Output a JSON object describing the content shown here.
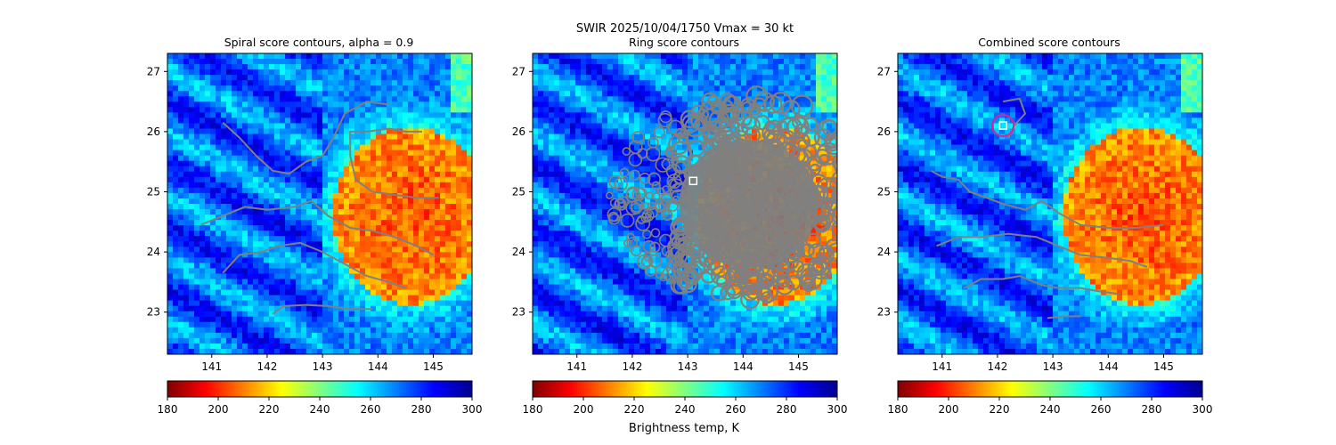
{
  "suptitle_line1": "SWIR  2025/10/04/1750    Vmax = 30 kt",
  "colorbar_label": "Brightness temp, K",
  "colormap": {
    "stops": [
      "#800000",
      "#ff0000",
      "#ff8000",
      "#ffff00",
      "#80ff80",
      "#00ffff",
      "#0080ff",
      "#0000ff",
      "#00008f"
    ],
    "range": [
      180,
      300
    ]
  },
  "chart_data": [
    {
      "type": "heatmap",
      "title": "Spiral score contours, alpha =  0.9",
      "xlim": [
        140.2,
        145.7
      ],
      "ylim": [
        22.3,
        27.3
      ],
      "xticks": [
        141,
        142,
        143,
        144,
        145
      ],
      "yticks": [
        23,
        24,
        25,
        26,
        27
      ],
      "colorbar": {
        "orientation": "horizontal",
        "ticks": [
          180,
          200,
          220,
          240,
          260,
          280,
          300
        ],
        "range": [
          180,
          300
        ],
        "reversed_jet": true
      },
      "contours": [
        {
          "color": "#808080",
          "points": [
            [
              141.2,
              26.15
            ],
            [
              141.5,
              25.9
            ],
            [
              141.8,
              25.6
            ],
            [
              142.1,
              25.35
            ],
            [
              142.4,
              25.3
            ],
            [
              142.7,
              25.5
            ],
            [
              143.0,
              25.6
            ],
            [
              143.2,
              25.9
            ],
            [
              143.4,
              26.3
            ],
            [
              143.8,
              26.5
            ],
            [
              144.2,
              26.45
            ]
          ]
        },
        {
          "color": "#808080",
          "points": [
            [
              143.5,
              25.6
            ],
            [
              143.5,
              26.0
            ],
            [
              143.8,
              26.0
            ],
            [
              144.2,
              26.05
            ],
            [
              144.5,
              26.0
            ],
            [
              144.8,
              26.0
            ]
          ]
        },
        {
          "color": "#808080",
          "points": [
            [
              143.5,
              25.6
            ],
            [
              143.6,
              25.2
            ],
            [
              143.9,
              25.0
            ],
            [
              144.3,
              24.95
            ],
            [
              144.7,
              24.9
            ],
            [
              145.1,
              24.9
            ]
          ]
        },
        {
          "color": "#808080",
          "points": [
            [
              140.8,
              24.45
            ],
            [
              141.2,
              24.6
            ],
            [
              141.6,
              24.75
            ],
            [
              142.0,
              24.7
            ],
            [
              142.5,
              24.75
            ],
            [
              142.8,
              24.85
            ],
            [
              143.1,
              24.6
            ],
            [
              143.5,
              24.4
            ],
            [
              143.9,
              24.35
            ],
            [
              144.3,
              24.25
            ],
            [
              144.7,
              24.1
            ],
            [
              145.0,
              23.95
            ]
          ]
        },
        {
          "color": "#808080",
          "points": [
            [
              141.2,
              23.65
            ],
            [
              141.5,
              23.95
            ],
            [
              141.9,
              24.0
            ],
            [
              142.2,
              24.1
            ],
            [
              142.6,
              24.15
            ],
            [
              143.0,
              24.0
            ],
            [
              143.4,
              23.8
            ],
            [
              143.8,
              23.6
            ],
            [
              144.2,
              23.5
            ],
            [
              144.5,
              23.4
            ]
          ]
        },
        {
          "color": "#808080",
          "points": [
            [
              142.1,
              22.97
            ],
            [
              142.3,
              23.1
            ],
            [
              142.7,
              23.12
            ],
            [
              143.1,
              23.1
            ],
            [
              143.5,
              23.05
            ],
            [
              143.9,
              23.05
            ]
          ]
        }
      ],
      "markers": []
    },
    {
      "type": "heatmap",
      "title": "Ring score contours",
      "xlim": [
        140.2,
        145.7
      ],
      "ylim": [
        22.3,
        27.3
      ],
      "xticks": [
        141,
        142,
        143,
        144,
        145
      ],
      "yticks": [
        23,
        24,
        25,
        26,
        27
      ],
      "colorbar": {
        "orientation": "horizontal",
        "ticks": [
          180,
          200,
          220,
          240,
          260,
          280,
          300
        ],
        "range": [
          180,
          300
        ],
        "reversed_jet": false
      },
      "contours": [],
      "ring_region": {
        "color": "#808080",
        "center": [
          143.1,
          25.2
        ],
        "extent_note": "dense contours"
      },
      "markers": [
        {
          "shape": "square",
          "x": 143.1,
          "y": 25.18,
          "color": "#ffffff"
        }
      ]
    },
    {
      "type": "heatmap",
      "title": "Combined score contours",
      "xlim": [
        140.2,
        145.7
      ],
      "ylim": [
        22.3,
        27.3
      ],
      "xticks": [
        141,
        142,
        143,
        144,
        145
      ],
      "yticks": [
        23,
        24,
        25,
        26,
        27
      ],
      "colorbar": {
        "orientation": "horizontal",
        "ticks": [
          180,
          200,
          220,
          240,
          260,
          280,
          300
        ],
        "range": [
          180,
          300
        ],
        "reversed_jet": true
      },
      "contours": [
        {
          "color": "#808080",
          "points": [
            [
              142.1,
              26.5
            ],
            [
              142.4,
              26.55
            ],
            [
              142.5,
              26.3
            ],
            [
              142.3,
              26.1
            ],
            [
              142.2,
              25.9
            ]
          ]
        },
        {
          "color": "#808080",
          "points": [
            [
              140.8,
              25.35
            ],
            [
              141.0,
              25.25
            ],
            [
              141.3,
              25.2
            ],
            [
              141.5,
              25.0
            ],
            [
              141.8,
              24.9
            ],
            [
              142.1,
              24.8
            ],
            [
              142.5,
              24.7
            ],
            [
              142.8,
              24.85
            ],
            [
              143.1,
              24.65
            ],
            [
              143.5,
              24.45
            ],
            [
              144.0,
              24.4
            ],
            [
              144.5,
              24.4
            ],
            [
              145.0,
              24.45
            ]
          ]
        },
        {
          "color": "#808080",
          "points": [
            [
              140.9,
              24.1
            ],
            [
              141.3,
              24.25
            ],
            [
              141.7,
              24.25
            ],
            [
              142.2,
              24.3
            ],
            [
              142.7,
              24.25
            ],
            [
              143.1,
              24.1
            ],
            [
              143.5,
              23.95
            ],
            [
              144.0,
              23.9
            ],
            [
              144.4,
              23.85
            ],
            [
              144.7,
              23.75
            ]
          ]
        },
        {
          "color": "#808080",
          "points": [
            [
              141.4,
              23.4
            ],
            [
              141.7,
              23.55
            ],
            [
              142.1,
              23.55
            ],
            [
              142.4,
              23.6
            ],
            [
              142.8,
              23.45
            ],
            [
              143.1,
              23.4
            ],
            [
              143.5,
              23.4
            ],
            [
              143.8,
              23.35
            ],
            [
              144.2,
              23.3
            ]
          ]
        },
        {
          "color": "#808080",
          "points": [
            [
              142.9,
              22.9
            ],
            [
              143.2,
              22.93
            ],
            [
              143.5,
              22.93
            ]
          ]
        }
      ],
      "markers": [
        {
          "shape": "circle",
          "x": 142.1,
          "y": 26.1,
          "color": "#e0209a"
        },
        {
          "shape": "square",
          "x": 142.1,
          "y": 26.1,
          "color": "#ffffff"
        }
      ]
    }
  ]
}
